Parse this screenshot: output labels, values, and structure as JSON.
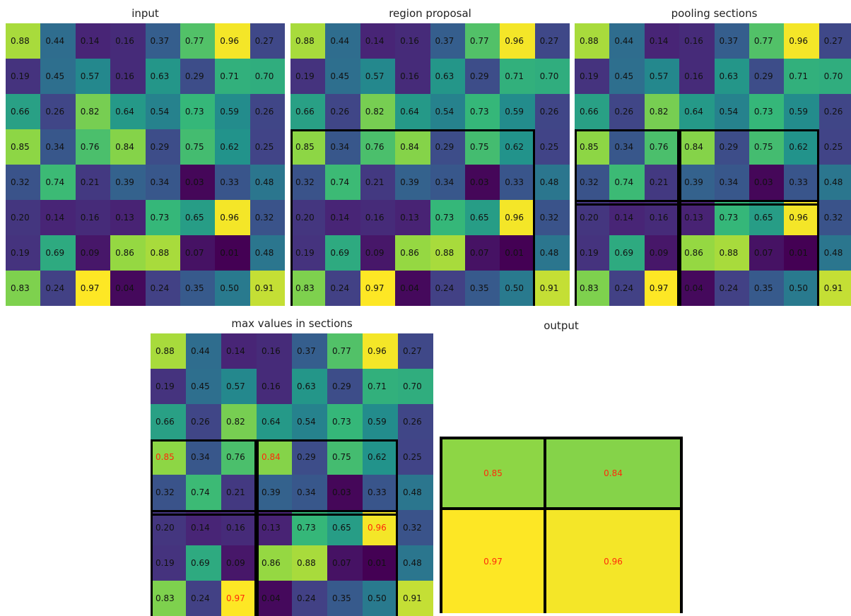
{
  "matrix": [
    [
      0.88,
      0.44,
      0.14,
      0.16,
      0.37,
      0.77,
      0.96,
      0.27
    ],
    [
      0.19,
      0.45,
      0.57,
      0.16,
      0.63,
      0.29,
      0.71,
      0.7
    ],
    [
      0.66,
      0.26,
      0.82,
      0.64,
      0.54,
      0.73,
      0.59,
      0.26
    ],
    [
      0.85,
      0.34,
      0.76,
      0.84,
      0.29,
      0.75,
      0.62,
      0.25
    ],
    [
      0.32,
      0.74,
      0.21,
      0.39,
      0.34,
      0.03,
      0.33,
      0.48
    ],
    [
      0.2,
      0.14,
      0.16,
      0.13,
      0.73,
      0.65,
      0.96,
      0.32
    ],
    [
      0.19,
      0.69,
      0.09,
      0.86,
      0.88,
      0.07,
      0.01,
      0.48
    ],
    [
      0.83,
      0.24,
      0.97,
      0.04,
      0.24,
      0.35,
      0.5,
      0.91
    ]
  ],
  "panels": [
    {
      "title": "input",
      "region": false,
      "sections": false,
      "highlight_max": false
    },
    {
      "title": "region proposal",
      "region": true,
      "sections": false,
      "highlight_max": false
    },
    {
      "title": "pooling sections",
      "region": true,
      "sections": true,
      "highlight_max": false
    },
    {
      "title": "max values in sections",
      "region": false,
      "sections": true,
      "highlight_max": true
    }
  ],
  "region_rows": [
    3,
    7
  ],
  "region_cols": [
    0,
    6
  ],
  "section_split": {
    "row": 5,
    "col": 3
  },
  "max_cells": [
    [
      3,
      0
    ],
    [
      3,
      3
    ],
    [
      5,
      6
    ],
    [
      7,
      2
    ]
  ],
  "output": {
    "title": "output",
    "values": [
      [
        0.85,
        0.84
      ],
      [
        0.97,
        0.96
      ]
    ],
    "value_color": "#ff2a0a"
  },
  "colormap": "viridis",
  "dark_text_color": "#111111",
  "highlight_color": "#ff2a0a"
}
